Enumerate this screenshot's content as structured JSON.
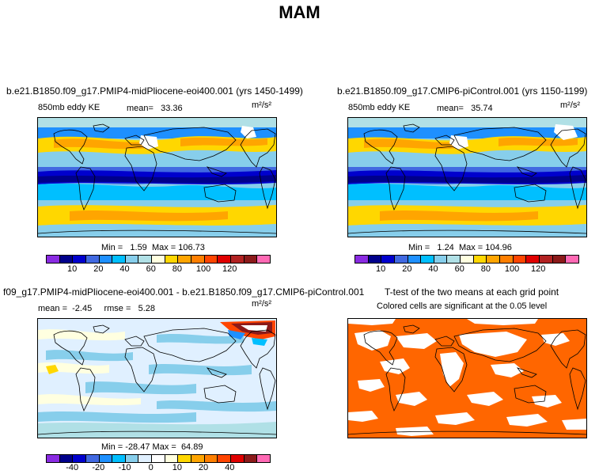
{
  "title": "MAM",
  "panels": [
    {
      "title": "b.e21.B1850.f09_g17.PMIP4-midPliocene-eoi400.001 (yrs 1450-1499)",
      "variable": "850mb eddy KE",
      "stat_label": "mean=",
      "stat_value": "33.36",
      "units": "m²/s²",
      "min_label": "Min =",
      "min_value": "1.59",
      "max_label": "Max =",
      "max_value": "106.73"
    },
    {
      "title": "b.e21.B1850.f09_g17.CMIP6-piControl.001 (yrs 1150-1199)",
      "variable": "850mb eddy KE",
      "stat_label": "mean=",
      "stat_value": "35.74",
      "units": "m²/s²",
      "min_label": "Min =",
      "min_value": "1.24",
      "max_label": "Max =",
      "max_value": "104.96"
    },
    {
      "title": "f09_g17.PMIP4-midPliocene-eoi400.001 - b.e21.B1850.f09_g17.CMIP6-piControl.001",
      "mean_label": "mean =",
      "mean_value": "-2.45",
      "rmse_label": "rmse =",
      "rmse_value": "5.28",
      "units": "m²/s²",
      "min_label": "Min =",
      "min_value": "-28.47",
      "max_label": "Max =",
      "max_value": "64.89"
    },
    {
      "title": "T-test of the two means at each grid point",
      "subtitle": "Colored cells are significant at the 0.05 level"
    }
  ],
  "colorbar_abs": {
    "colors": [
      "#8a2be2",
      "#00008b",
      "#0000cd",
      "#4169e1",
      "#1e90ff",
      "#00bfff",
      "#87ceeb",
      "#b0e0e6",
      "#ffffe0",
      "#ffd700",
      "#ffa500",
      "#ff7f00",
      "#ff4500",
      "#e00000",
      "#b22222",
      "#8b1a1a",
      "#ff69b4"
    ],
    "ticks": [
      "10",
      "20",
      "40",
      "60",
      "80",
      "100",
      "120"
    ]
  },
  "colorbar_diff": {
    "colors": [
      "#8a2be2",
      "#00008b",
      "#0000cd",
      "#4169e1",
      "#1e90ff",
      "#00bfff",
      "#87ceeb",
      "#e0f0ff",
      "#ffffff",
      "#ffffe0",
      "#ffd700",
      "#ffa500",
      "#ff7f00",
      "#ff4500",
      "#e00000",
      "#8b1a1a",
      "#ff69b4"
    ],
    "ticks": [
      "-40",
      "-20",
      "-10",
      "0",
      "10",
      "20",
      "40"
    ]
  },
  "colors": {
    "significant": "#ff6600"
  }
}
